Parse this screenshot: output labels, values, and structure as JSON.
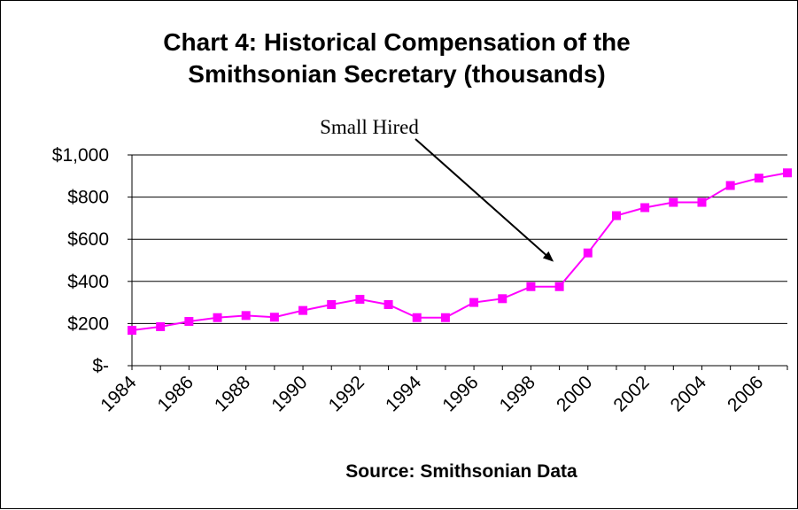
{
  "chart_data": {
    "type": "line",
    "title_lines": [
      "Chart 4: Historical Compensation of the",
      "Smithsonian Secretary (thousands)"
    ],
    "xlabel": "Source: Smithsonian Data",
    "ylabel": "",
    "x": [
      1984,
      1985,
      1986,
      1987,
      1988,
      1989,
      1990,
      1991,
      1992,
      1993,
      1994,
      1995,
      1996,
      1997,
      1998,
      1999,
      2000,
      2001,
      2002,
      2003,
      2004,
      2005,
      2006,
      2007
    ],
    "x_tick_labels": [
      "1984",
      "1986",
      "1988",
      "1990",
      "1992",
      "1994",
      "1996",
      "1998",
      "2000",
      "2002",
      "2004",
      "2006"
    ],
    "x_tick_values": [
      1984,
      1986,
      1988,
      1990,
      1992,
      1994,
      1996,
      1998,
      2000,
      2002,
      2004,
      2006
    ],
    "xlim": [
      1984,
      2007
    ],
    "ylim": [
      0,
      1000
    ],
    "y_ticks": [
      0,
      200,
      400,
      600,
      800,
      1000
    ],
    "y_tick_labels": [
      "$-",
      "$200",
      "$400",
      "$600",
      "$800",
      "$1,000"
    ],
    "grid": "horizontal",
    "legend": "none",
    "series": [
      {
        "color": "#ff00ff",
        "marker": "square",
        "values": [
          168,
          185,
          210,
          228,
          238,
          230,
          262,
          290,
          315,
          290,
          228,
          228,
          300,
          318,
          375,
          375,
          535,
          712,
          750,
          775,
          775,
          855,
          890,
          915
        ]
      }
    ],
    "annotations": [
      {
        "text": "Small Hired",
        "target_x": 1999,
        "target_y": 440
      }
    ]
  }
}
